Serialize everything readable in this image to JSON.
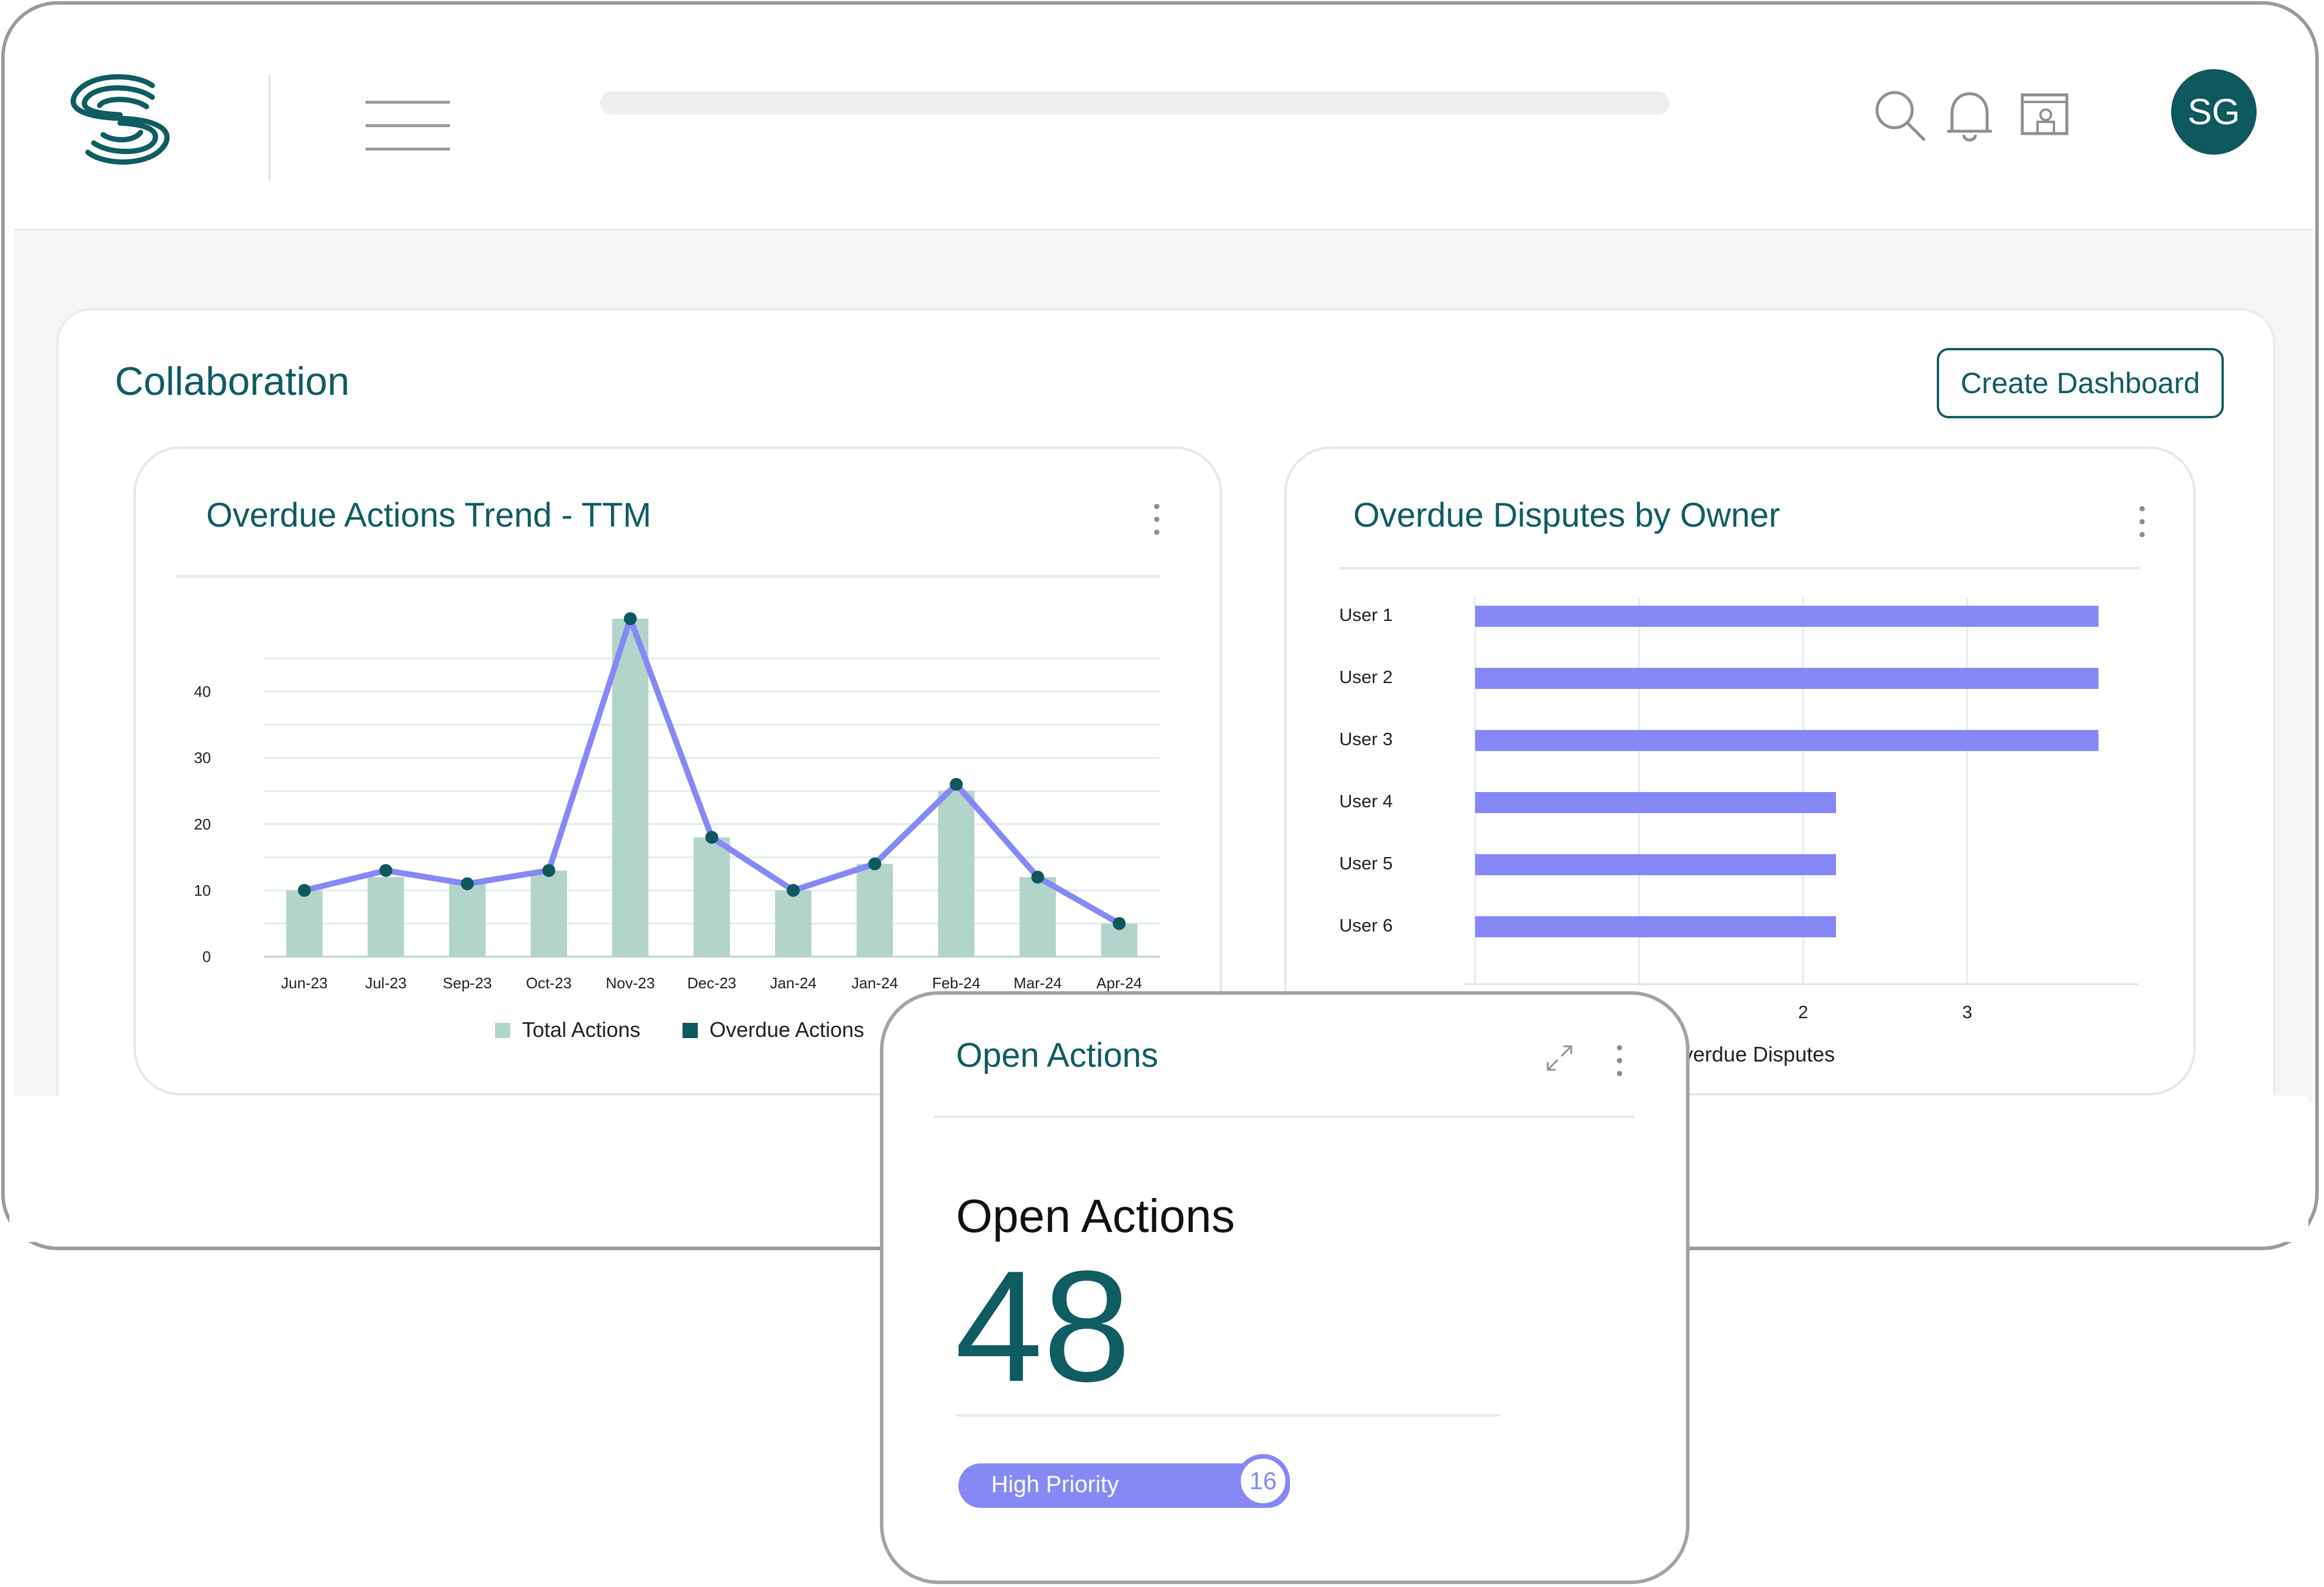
{
  "header": {
    "avatar_initials": "SG",
    "icons": [
      "menu-icon",
      "search-icon",
      "bell-icon",
      "screen-share-icon"
    ]
  },
  "page": {
    "title": "Collaboration",
    "create_button": "Create Dashboard"
  },
  "colors": {
    "brand": "#0f5c63",
    "bar_teal": "#b2d4ca",
    "accent": "#8588f5"
  },
  "trend_card": {
    "title": "Overdue Actions Trend - TTM",
    "chart_data": {
      "type": "bar",
      "categories": [
        "Jun-23",
        "Jul-23",
        "Sep-23",
        "Oct-23",
        "Nov-23",
        "Dec-23",
        "Jan-24",
        "Jan-24",
        "Feb-24",
        "Mar-24",
        "Apr-24"
      ],
      "yticks": [
        0,
        10,
        20,
        30,
        40
      ],
      "ylim": [
        0,
        48
      ],
      "grid": true,
      "legend": "bottom-center",
      "series": [
        {
          "name": "Total Actions",
          "type": "bar",
          "color": "#b2d4ca",
          "values": [
            10,
            12,
            11,
            13,
            51,
            18,
            10,
            14,
            25,
            12,
            5
          ]
        },
        {
          "name": "Overdue Actions",
          "type": "line",
          "color": "#8588f5",
          "marker_color": "#0e585e",
          "values": [
            10,
            13,
            11,
            13,
            51,
            18,
            10,
            14,
            26,
            12,
            5
          ]
        }
      ]
    }
  },
  "disputes_card": {
    "title": "Overdue Disputes by Owner",
    "chart_data": {
      "type": "bar",
      "orientation": "horizontal",
      "categories": [
        "User 1",
        "User 2",
        "User 3",
        "User 4",
        "User 5",
        "User 6"
      ],
      "values": [
        3.8,
        3.8,
        3.8,
        2.2,
        2.2,
        2.2
      ],
      "xticks_visible": [
        2,
        3
      ],
      "xlim": [
        0,
        4
      ],
      "xlabel_visible": "verdue Disputes",
      "color": "#8588f5",
      "grid": true
    }
  },
  "open_actions": {
    "card_title": "Open Actions",
    "heading": "Open Actions",
    "count": "48",
    "priority_label": "High Priority",
    "priority_count": "16"
  }
}
